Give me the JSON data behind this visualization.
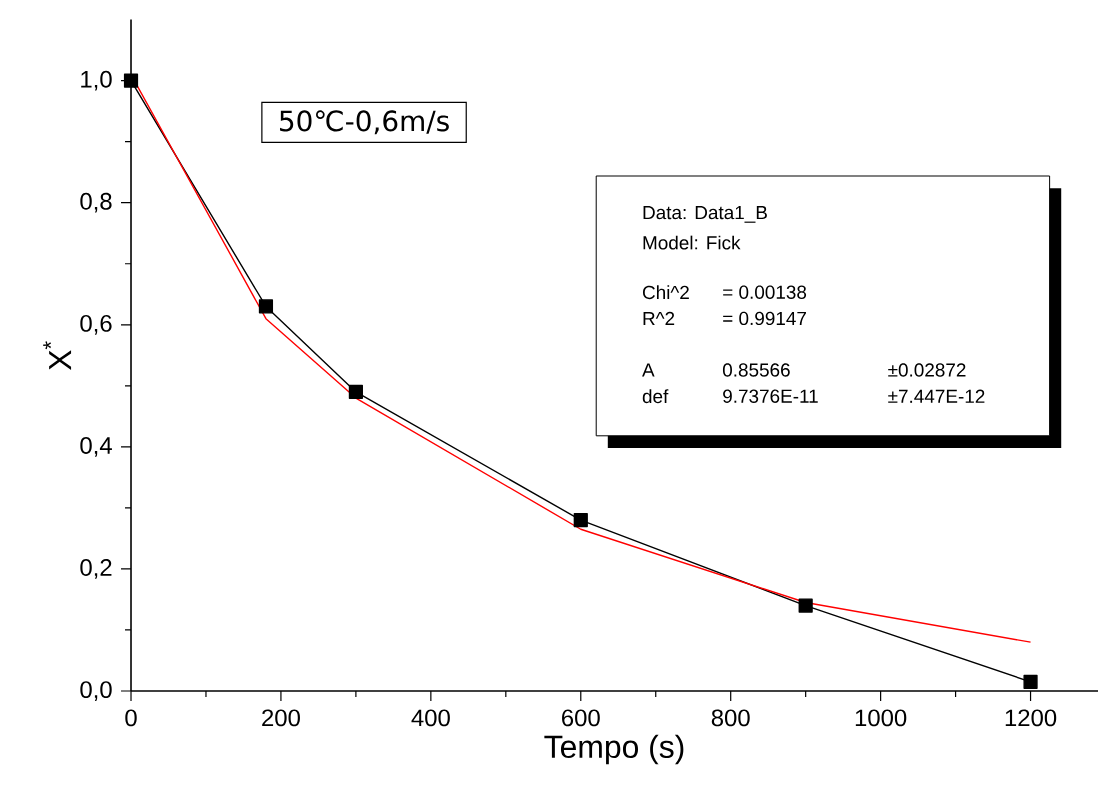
{
  "chart_data": {
    "type": "line",
    "xlabel": "Tempo (s)",
    "ylabel": "X$^{*}$",
    "x": [
      0,
      180,
      300,
      600,
      900,
      1200
    ],
    "series": [
      {
        "color": "#000000",
        "marker": "square",
        "values": [
          1.0,
          0.63,
          0.49,
          0.28,
          0.14,
          0.015
        ]
      },
      {
        "color": "#ff0000",
        "marker": "none",
        "values": [
          1.01,
          0.61,
          0.48,
          0.265,
          0.145,
          0.08
        ]
      }
    ],
    "xlim": [
      0,
      1290
    ],
    "ylim": [
      0,
      1.1
    ],
    "xticks": [
      0,
      200,
      400,
      600,
      800,
      1000,
      1200
    ],
    "yticks": [
      {
        "value": 0,
        "label": "0,0"
      },
      {
        "value": 0.2,
        "label": "0,2"
      },
      {
        "value": 0.4,
        "label": "0,4"
      },
      {
        "value": 0.6,
        "label": "0,6"
      },
      {
        "value": 0.8,
        "label": "0,8"
      },
      {
        "value": 1.0,
        "label": "1,0"
      }
    ],
    "grid": false,
    "line_style": "solid",
    "annotations": [
      "50℃-0,6m/s",
      "Data: Data1_B",
      "Model: Fick",
      "Chi^2",
      "= 0.00138",
      "R^2",
      "= 0.99147",
      "A",
      "0.85566",
      "±0.02872",
      "def",
      "9.7376E-11",
      "±7.447E-12"
    ]
  }
}
